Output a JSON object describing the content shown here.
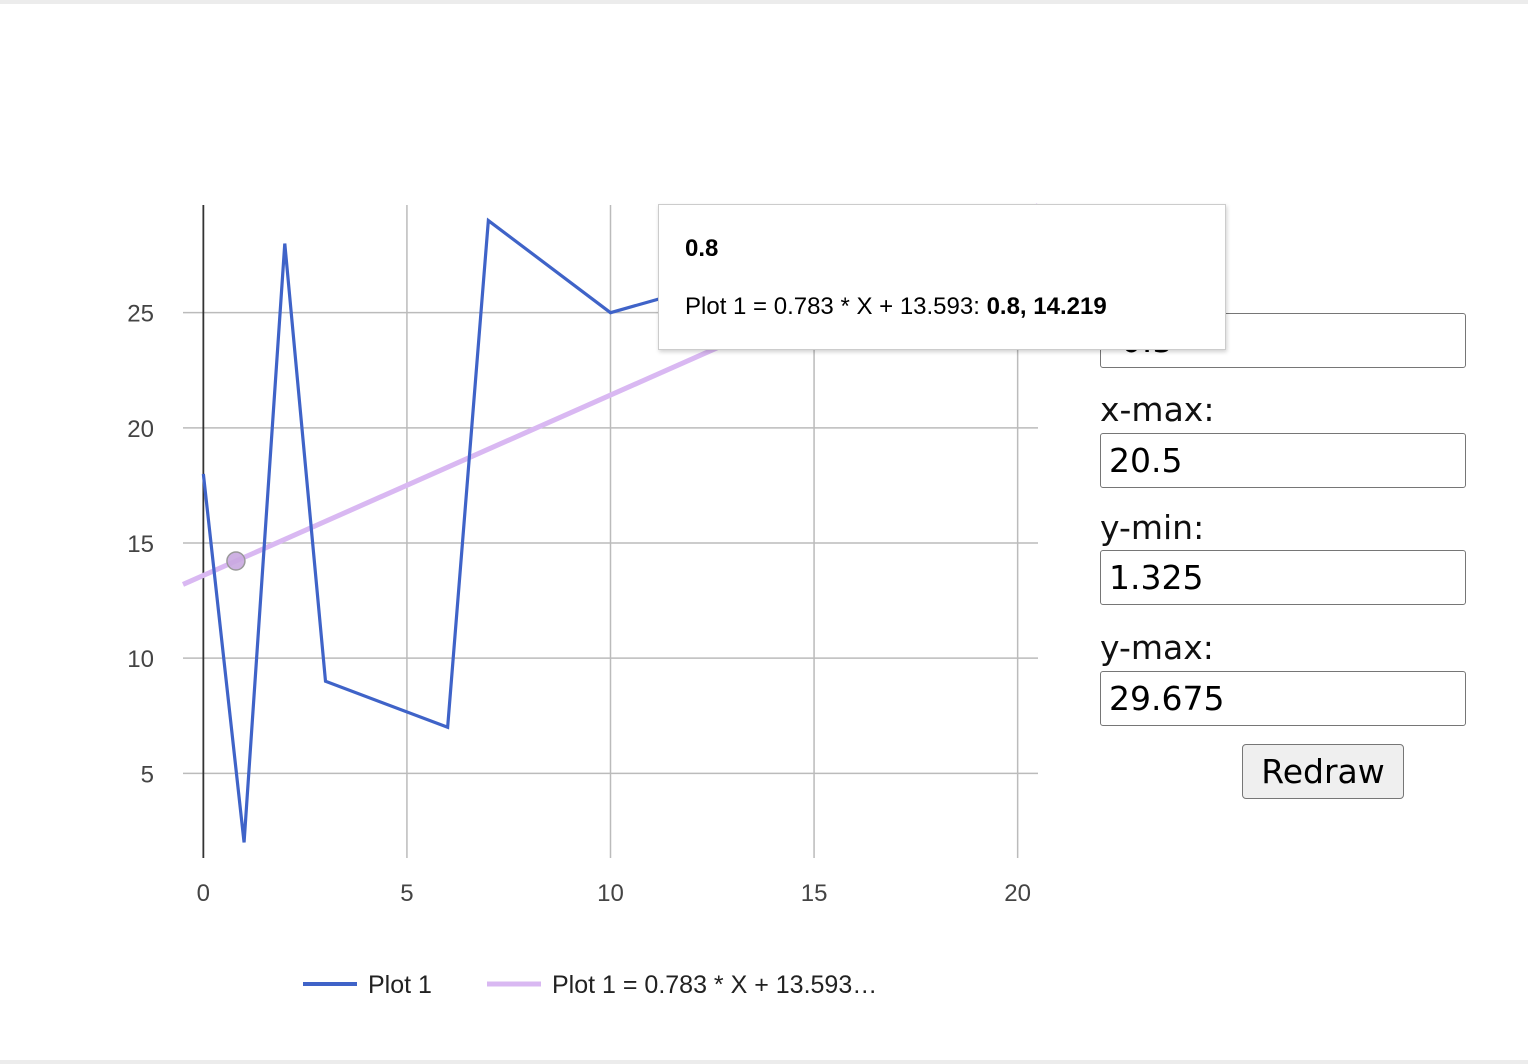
{
  "chart_data": {
    "type": "line",
    "x_ticks": [
      "0",
      "5",
      "10",
      "15",
      "20"
    ],
    "y_ticks": [
      "5",
      "10",
      "15",
      "20",
      "25"
    ],
    "x_range": [
      -0.5,
      20.5
    ],
    "y_range": [
      1.325,
      29.675
    ],
    "grid": true,
    "legend_position": "bottom",
    "series": [
      {
        "name": "Plot 1",
        "color": "#3f63c8",
        "x": [
          0,
          1,
          2,
          3,
          6,
          7,
          10,
          12
        ],
        "y": [
          18,
          2,
          28,
          9,
          7,
          29,
          25,
          26
        ]
      },
      {
        "name": "Plot 1 = 0.783 * X + 13.593",
        "legend_label": "Plot 1 = 0.783 * X + 13.593…",
        "type": "trendline",
        "slope": 0.783,
        "intercept": 13.593,
        "color": "#d9b8f2"
      }
    ],
    "highlighted_point": {
      "x": 0.8,
      "y": 14.219
    }
  },
  "tooltip": {
    "x_value": "0.8",
    "series_label": "Plot 1 = 0.783 * X + 13.593: ",
    "point_value": "0.8, 14.219"
  },
  "controls": {
    "x_min_value": "-0.5",
    "x_max_label": "x-max:",
    "x_max_value": "20.5",
    "y_min_label": "y-min:",
    "y_min_value": "1.325",
    "y_max_label": "y-max:",
    "y_max_value": "29.675",
    "redraw_label": "Redraw"
  }
}
